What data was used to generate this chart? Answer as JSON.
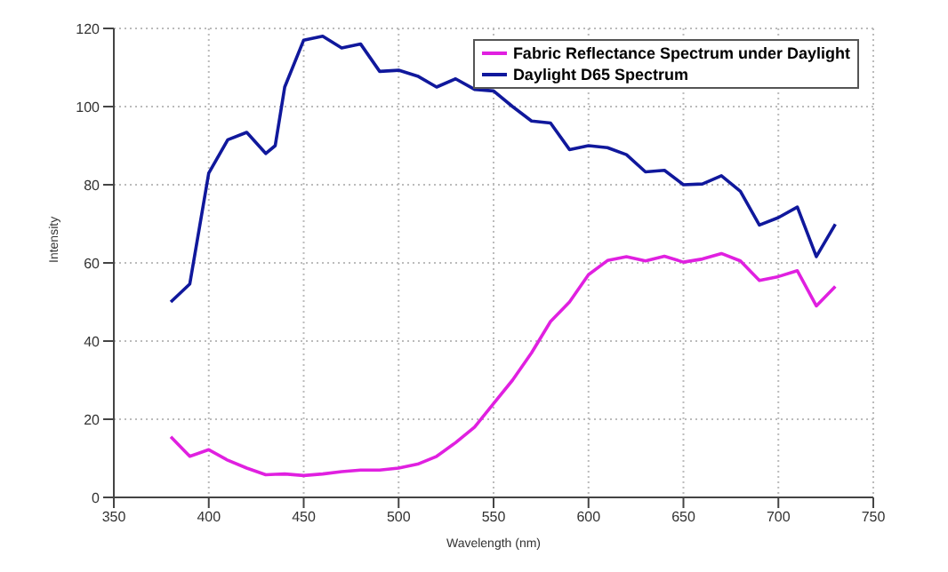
{
  "chart_data": {
    "type": "line",
    "xlabel": "Wavelength (nm)",
    "ylabel": "Intensity",
    "x": [
      380,
      390,
      400,
      410,
      420,
      430,
      435,
      440,
      450,
      460,
      470,
      480,
      490,
      500,
      510,
      520,
      530,
      540,
      550,
      560,
      570,
      580,
      590,
      600,
      610,
      620,
      630,
      640,
      650,
      660,
      670,
      680,
      690,
      700,
      710,
      720,
      730
    ],
    "series": [
      {
        "name": "Fabric Reflectance Spectrum under Daylight",
        "color": "#e020e0",
        "values": [
          15.5,
          10.5,
          12.2,
          9.5,
          7.5,
          5.8,
          5.9,
          6,
          5.6,
          6,
          6.6,
          7,
          7,
          7.5,
          8.5,
          10.5,
          14,
          18,
          24,
          30,
          37,
          45,
          50,
          57,
          60.6,
          61.6,
          60.5,
          61.7,
          60.2,
          61,
          62.4,
          60.5,
          55.5,
          56.5,
          58,
          49,
          54
        ]
      },
      {
        "name": "Daylight D65 Spectrum",
        "color": "#10189c",
        "values": [
          50,
          54.6,
          83,
          91.5,
          93.4,
          88,
          90,
          105,
          117,
          118,
          115,
          116,
          109,
          109.3,
          107.8,
          105,
          107.1,
          104.4,
          104,
          100,
          96.3,
          95.8,
          89,
          90,
          89.5,
          87.7,
          83.3,
          83.7,
          80,
          80.2,
          82.3,
          78.3,
          69.7,
          71.6,
          74.3,
          61.6,
          69.9
        ]
      }
    ],
    "xlim": [
      350,
      750
    ],
    "xticks": [
      350,
      400,
      450,
      500,
      550,
      600,
      650,
      700,
      750
    ],
    "ylim": [
      0,
      120
    ],
    "yticks": [
      0,
      20,
      40,
      60,
      80,
      100,
      120
    ],
    "grid": true,
    "legend": "top right",
    "line_style": "solid",
    "marker": "none"
  }
}
